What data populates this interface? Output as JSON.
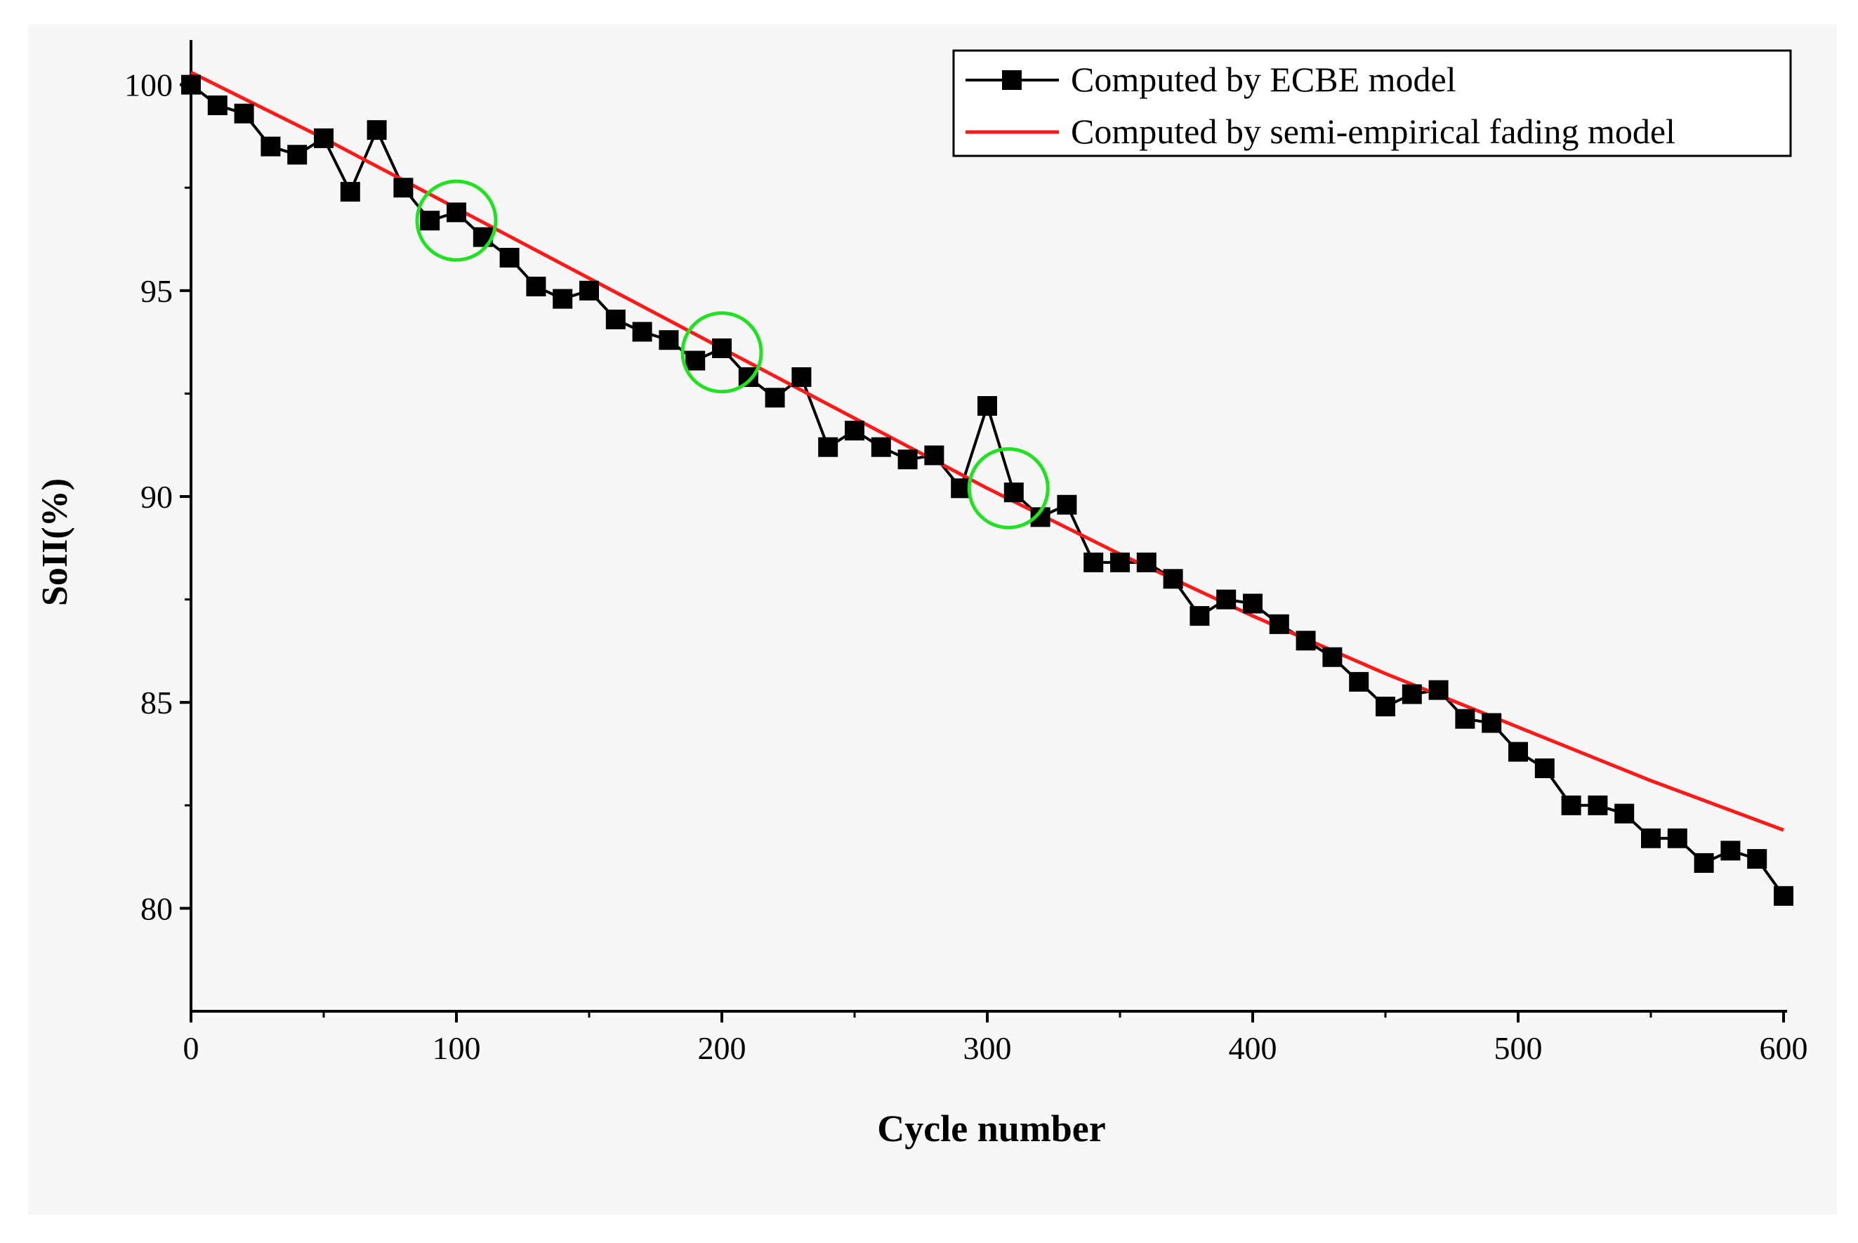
{
  "chart_data": {
    "type": "line",
    "title": "",
    "xlabel": "Cycle number",
    "ylabel": "SoII(%)",
    "xlim": [
      0,
      600
    ],
    "ylim": [
      77.5,
      101
    ],
    "x_ticks": [
      0,
      100,
      200,
      300,
      400,
      500,
      600
    ],
    "y_ticks": [
      80,
      85,
      90,
      95,
      100
    ],
    "grid": false,
    "legend_position": "top-right",
    "series": [
      {
        "name": "Computed by ECBE model",
        "color": "#000000",
        "marker": "square",
        "x": [
          0,
          10,
          20,
          30,
          40,
          50,
          60,
          70,
          80,
          90,
          100,
          110,
          120,
          130,
          140,
          150,
          160,
          170,
          180,
          190,
          200,
          210,
          220,
          230,
          240,
          250,
          260,
          270,
          280,
          290,
          300,
          310,
          320,
          330,
          340,
          350,
          360,
          370,
          380,
          390,
          400,
          410,
          420,
          430,
          440,
          450,
          460,
          470,
          480,
          490,
          500,
          510,
          520,
          530,
          540,
          550,
          560,
          570,
          580,
          590,
          600
        ],
        "values": [
          100.0,
          99.5,
          99.3,
          98.5,
          98.3,
          98.7,
          97.4,
          98.9,
          97.5,
          96.7,
          96.9,
          96.3,
          95.8,
          95.1,
          94.8,
          95.0,
          94.3,
          94.0,
          93.8,
          93.3,
          93.6,
          92.9,
          92.4,
          92.9,
          91.2,
          91.6,
          91.2,
          90.9,
          91.0,
          90.2,
          92.2,
          90.1,
          89.5,
          89.8,
          88.4,
          88.4,
          88.4,
          88.0,
          87.1,
          87.5,
          87.4,
          86.9,
          86.5,
          86.1,
          85.5,
          84.9,
          85.2,
          85.3,
          84.6,
          84.5,
          83.8,
          83.4,
          82.5,
          82.5,
          82.3,
          81.7,
          81.7,
          81.1,
          81.4,
          81.2,
          80.3
        ]
      },
      {
        "name": "Computed by semi-empirical fading model",
        "color": "#ff1a1a",
        "marker": "none",
        "x": [
          0,
          50,
          100,
          150,
          200,
          250,
          300,
          350,
          400,
          450,
          500,
          550,
          600
        ],
        "values": [
          100.3,
          98.7,
          97.0,
          95.3,
          93.6,
          91.9,
          90.2,
          88.6,
          87.1,
          85.7,
          84.4,
          83.1,
          81.9
        ]
      }
    ],
    "annotations": [
      {
        "type": "circle",
        "x": 100,
        "y": 96.7,
        "color": "#22e022"
      },
      {
        "type": "circle",
        "x": 200,
        "y": 93.5,
        "color": "#22e022"
      },
      {
        "type": "circle",
        "x": 308,
        "y": 90.2,
        "color": "#22e022"
      }
    ]
  }
}
